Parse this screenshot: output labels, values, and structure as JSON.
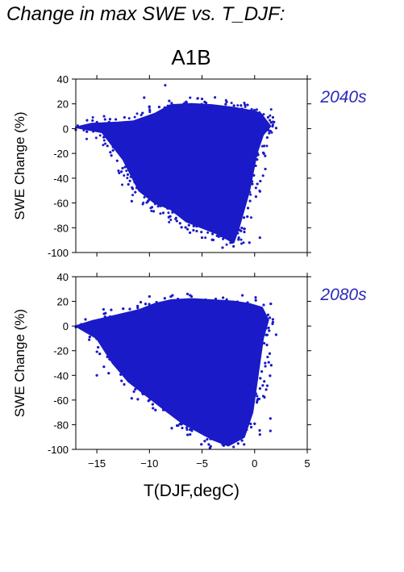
{
  "figure": {
    "title": "Change in max SWE vs. T_DJF:",
    "scenario": "A1B",
    "marker_color": "#1a1ac8",
    "label_color": "#2a2ab8"
  },
  "chart_data": [
    {
      "type": "scatter",
      "panel": "2040s",
      "xlabel": "",
      "ylabel": "SWE Change (%)",
      "xlim": [
        -17,
        5
      ],
      "ylim": [
        -100,
        40
      ],
      "xticks": [
        -15,
        -10,
        -5,
        0,
        5
      ],
      "yticks": [
        40,
        20,
        0,
        -20,
        -40,
        -60,
        -80,
        -100
      ],
      "show_xtick_labels": false,
      "point_cloud_outline": [
        [
          -17,
          1
        ],
        [
          -15.5,
          4
        ],
        [
          -13,
          5
        ],
        [
          -11.5,
          6
        ],
        [
          -9.5,
          12
        ],
        [
          -8,
          19
        ],
        [
          -6,
          20
        ],
        [
          -4,
          19
        ],
        [
          -2,
          17
        ],
        [
          0,
          14
        ],
        [
          0.6,
          12
        ],
        [
          1.5,
          2
        ],
        [
          0.8,
          -5
        ],
        [
          0.2,
          -20
        ],
        [
          -0.5,
          -50
        ],
        [
          -1,
          -65
        ],
        [
          -1.5,
          -80
        ],
        [
          -2,
          -92
        ],
        [
          -3.5,
          -85
        ],
        [
          -5,
          -80
        ],
        [
          -6.5,
          -75
        ],
        [
          -8,
          -65
        ],
        [
          -9.5,
          -60
        ],
        [
          -11,
          -50
        ],
        [
          -12.5,
          -25
        ],
        [
          -14.5,
          -3
        ]
      ],
      "scattered_points": [
        [
          -8.5,
          35
        ],
        [
          -16,
          2
        ],
        [
          -14,
          -3
        ],
        [
          -12.5,
          -20
        ],
        [
          -10,
          -30
        ],
        [
          -8,
          -60
        ],
        [
          -7.5,
          -68
        ],
        [
          -6,
          -73
        ],
        [
          -5,
          -88
        ],
        [
          -4,
          -85
        ],
        [
          -3,
          -89
        ],
        [
          -2,
          -95
        ],
        [
          -1.5,
          -88
        ],
        [
          -0.5,
          -92
        ],
        [
          0.5,
          -88
        ],
        [
          1.5,
          -2
        ],
        [
          1,
          -22
        ],
        [
          -10.5,
          25
        ],
        [
          -5,
          24
        ],
        [
          -12,
          -45
        ]
      ]
    },
    {
      "type": "scatter",
      "panel": "2080s",
      "xlabel": "T(DJF,degC)",
      "ylabel": "SWE Change (%)",
      "xlim": [
        -17,
        5
      ],
      "ylim": [
        -100,
        40
      ],
      "xticks": [
        -15,
        -10,
        -5,
        0,
        5
      ],
      "yticks": [
        40,
        20,
        0,
        -20,
        -40,
        -60,
        -80,
        -100
      ],
      "show_xtick_labels": true,
      "point_cloud_outline": [
        [
          -17,
          0
        ],
        [
          -15.5,
          4
        ],
        [
          -14,
          7
        ],
        [
          -12.5,
          10
        ],
        [
          -11,
          13
        ],
        [
          -9.5,
          18
        ],
        [
          -8,
          21
        ],
        [
          -6,
          22
        ],
        [
          -4,
          21
        ],
        [
          -2,
          20
        ],
        [
          -0.5,
          18
        ],
        [
          0.7,
          15
        ],
        [
          1.3,
          5
        ],
        [
          0.8,
          -10
        ],
        [
          0.3,
          -40
        ],
        [
          -0.2,
          -70
        ],
        [
          -1,
          -90
        ],
        [
          -2.5,
          -97
        ],
        [
          -4,
          -92
        ],
        [
          -5.5,
          -85
        ],
        [
          -7,
          -78
        ],
        [
          -9,
          -65
        ],
        [
          -10.5,
          -55
        ],
        [
          -12,
          -45
        ],
        [
          -13.5,
          -30
        ],
        [
          -15,
          -10
        ]
      ],
      "scattered_points": [
        [
          -16.5,
          -2
        ],
        [
          -15,
          -40
        ],
        [
          -14,
          -25
        ],
        [
          -12,
          -42
        ],
        [
          -10,
          -60
        ],
        [
          -8.5,
          -68
        ],
        [
          -7,
          -79
        ],
        [
          -6,
          -84
        ],
        [
          -4.5,
          -87
        ],
        [
          -3,
          -95
        ],
        [
          -2,
          -98
        ],
        [
          -1,
          -96
        ],
        [
          0.5,
          -88
        ],
        [
          1.5,
          -85
        ],
        [
          1.5,
          -75
        ],
        [
          1,
          -30
        ],
        [
          -10,
          24
        ],
        [
          -6,
          24
        ],
        [
          -3,
          23
        ]
      ]
    }
  ]
}
